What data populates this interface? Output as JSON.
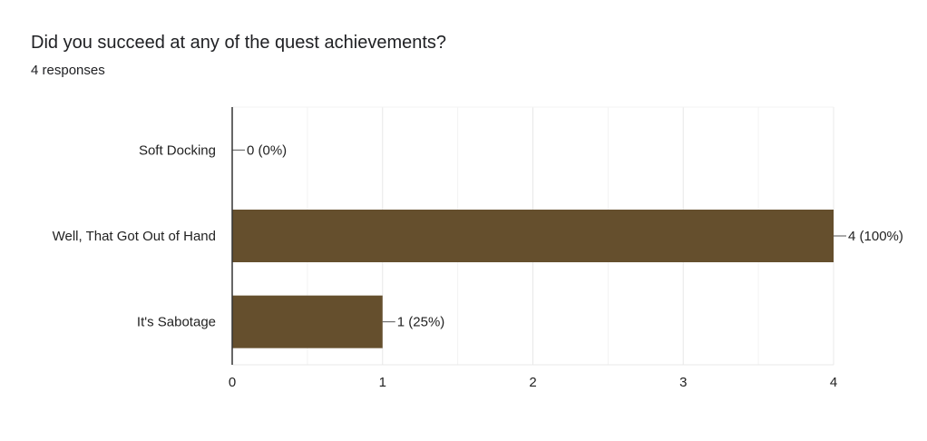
{
  "header": {
    "title": "Did you succeed at any of the quest achievements?",
    "subtitle": "4 responses"
  },
  "colors": {
    "bar": "#654f2d",
    "grid": "#e8e8e8",
    "axis": "#333333",
    "text": "#222222"
  },
  "chart_data": {
    "type": "bar",
    "orientation": "horizontal",
    "title": "Did you succeed at any of the quest achievements?",
    "subtitle": "4 responses",
    "categories": [
      "Soft Docking",
      "Well, That Got Out of Hand",
      "It's Sabotage"
    ],
    "values": [
      0,
      4,
      1
    ],
    "data_labels": [
      "0 (0%)",
      "4 (100%)",
      "1 (25%)"
    ],
    "xlim": [
      0,
      4
    ],
    "x_ticks": [
      0,
      1,
      2,
      3,
      4
    ],
    "x_tick_labels": [
      "0",
      "1",
      "2",
      "3",
      "4"
    ],
    "grid": true,
    "legend": "none"
  }
}
